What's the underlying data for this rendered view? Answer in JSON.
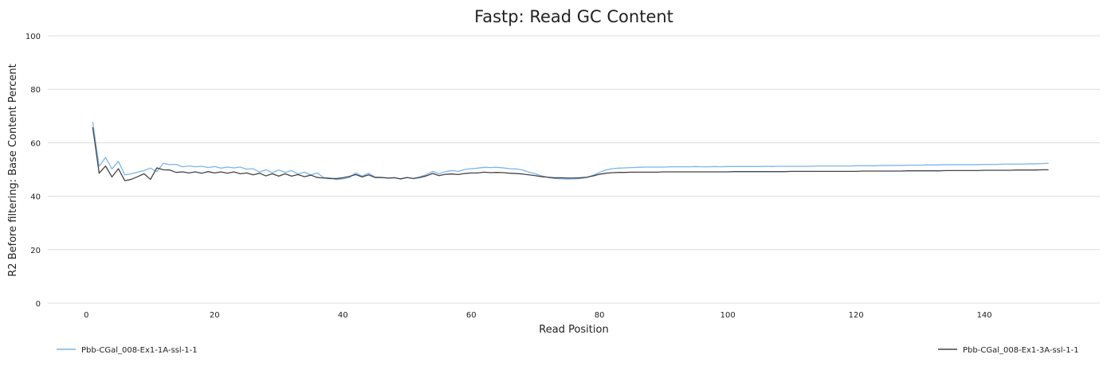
{
  "chart_data": {
    "type": "line",
    "title": "Fastp: Read GC Content",
    "xlabel": "Read Position",
    "ylabel": "R2 Before filtering: Base Content Percent",
    "xlim": [
      -6,
      158
    ],
    "ylim": [
      0,
      100
    ],
    "xticks": [
      0,
      20,
      40,
      60,
      80,
      100,
      120,
      140
    ],
    "yticks": [
      0,
      20,
      40,
      60,
      80,
      100
    ],
    "grid": true,
    "legend_position": "bottom",
    "x_start": 1,
    "series": [
      {
        "name": "Pbb-CGal_008-Ex1-1A-ssl-1-1",
        "color": "#7cb5ec",
        "values": [
          67.8,
          51.2,
          54.5,
          50.2,
          53.0,
          48.0,
          48.4,
          49.0,
          49.6,
          50.5,
          49.2,
          52.3,
          51.8,
          51.9,
          51.0,
          51.3,
          51.0,
          51.2,
          50.7,
          51.1,
          50.5,
          50.9,
          50.6,
          50.9,
          50.1,
          50.3,
          49.0,
          49.9,
          48.8,
          49.8,
          48.9,
          49.6,
          48.3,
          49.0,
          48.0,
          48.7,
          47.0,
          46.8,
          46.2,
          46.5,
          47.0,
          48.7,
          47.5,
          48.6,
          47.2,
          47.0,
          46.8,
          46.9,
          46.4,
          47.0,
          46.6,
          47.3,
          48.0,
          49.3,
          48.4,
          49.2,
          49.6,
          49.3,
          50.0,
          50.3,
          50.5,
          50.8,
          50.7,
          50.8,
          50.6,
          50.3,
          50.2,
          49.8,
          49.0,
          48.4,
          47.6,
          47.0,
          46.6,
          46.5,
          46.4,
          46.5,
          46.6,
          47.0,
          47.8,
          48.9,
          49.8,
          50.3,
          50.5,
          50.6,
          50.7,
          50.8,
          50.9,
          50.9,
          50.9,
          50.9,
          51.0,
          51.0,
          51.0,
          51.0,
          51.1,
          51.0,
          51.0,
          51.1,
          51.0,
          51.1,
          51.1,
          51.1,
          51.1,
          51.1,
          51.1,
          51.2,
          51.1,
          51.2,
          51.2,
          51.2,
          51.2,
          51.2,
          51.2,
          51.3,
          51.3,
          51.3,
          51.3,
          51.3,
          51.3,
          51.4,
          51.4,
          51.4,
          51.4,
          51.5,
          51.5,
          51.5,
          51.5,
          51.6,
          51.6,
          51.6,
          51.7,
          51.7,
          51.7,
          51.8,
          51.8,
          51.8,
          51.8,
          51.8,
          51.8,
          51.9,
          51.9,
          51.9,
          52.0,
          52.0,
          52.0,
          52.0,
          52.1,
          52.1,
          52.2,
          52.3
        ]
      },
      {
        "name": "Pbb-CGal_008-Ex1-3A-ssl-1-1",
        "color": "#434348",
        "values": [
          65.8,
          48.6,
          51.3,
          47.2,
          50.3,
          45.8,
          46.3,
          47.3,
          48.4,
          46.3,
          50.6,
          49.9,
          49.8,
          48.9,
          49.1,
          48.7,
          49.1,
          48.6,
          49.2,
          48.7,
          49.1,
          48.6,
          49.1,
          48.4,
          48.7,
          48.0,
          48.6,
          47.6,
          48.4,
          47.5,
          48.4,
          47.5,
          48.1,
          47.3,
          47.9,
          47.0,
          46.8,
          46.6,
          46.6,
          46.9,
          47.4,
          48.1,
          47.2,
          48.0,
          47.0,
          47.0,
          46.8,
          46.9,
          46.5,
          47.0,
          46.6,
          47.0,
          47.6,
          48.5,
          47.7,
          48.2,
          48.3,
          48.1,
          48.5,
          48.7,
          48.7,
          49.0,
          48.8,
          48.9,
          48.8,
          48.6,
          48.5,
          48.3,
          48.0,
          47.7,
          47.3,
          47.1,
          46.9,
          46.9,
          46.8,
          46.8,
          46.9,
          47.1,
          47.6,
          48.2,
          48.6,
          48.8,
          48.9,
          48.9,
          49.0,
          49.0,
          49.0,
          49.0,
          49.0,
          49.1,
          49.1,
          49.1,
          49.1,
          49.1,
          49.1,
          49.1,
          49.1,
          49.1,
          49.1,
          49.1,
          49.2,
          49.2,
          49.2,
          49.2,
          49.2,
          49.2,
          49.2,
          49.2,
          49.2,
          49.3,
          49.3,
          49.3,
          49.3,
          49.3,
          49.3,
          49.3,
          49.3,
          49.3,
          49.3,
          49.3,
          49.4,
          49.4,
          49.4,
          49.4,
          49.4,
          49.4,
          49.4,
          49.5,
          49.5,
          49.5,
          49.5,
          49.5,
          49.5,
          49.6,
          49.6,
          49.6,
          49.6,
          49.6,
          49.6,
          49.7,
          49.7,
          49.7,
          49.7,
          49.7,
          49.8,
          49.8,
          49.8,
          49.8,
          49.9,
          49.9
        ]
      }
    ]
  }
}
